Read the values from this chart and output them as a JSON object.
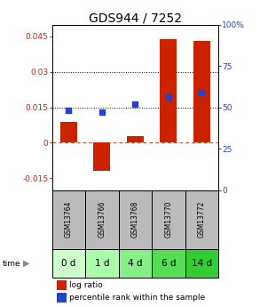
{
  "title": "GDS944 / 7252",
  "samples": [
    "GSM13764",
    "GSM13766",
    "GSM13768",
    "GSM13770",
    "GSM13772"
  ],
  "time_labels": [
    "0 d",
    "1 d",
    "4 d",
    "6 d",
    "14 d"
  ],
  "log_ratio": [
    0.009,
    -0.012,
    0.003,
    0.044,
    0.043
  ],
  "percentile_rank": [
    0.48,
    0.47,
    0.52,
    0.56,
    0.59
  ],
  "ylim_left": [
    -0.02,
    0.05
  ],
  "ylim_right": [
    0.0,
    1.0
  ],
  "yticks_left": [
    -0.015,
    0.0,
    0.015,
    0.03,
    0.045
  ],
  "ytick_labels_left": [
    "-0.015",
    "0",
    "0.015",
    "0.03",
    "0.045"
  ],
  "yticks_right": [
    0.0,
    0.25,
    0.5,
    0.75,
    1.0
  ],
  "ytick_labels_right": [
    "0",
    "25",
    "50",
    "75",
    "100%"
  ],
  "hlines": [
    0.015,
    0.03
  ],
  "zero_line": 0.0,
  "bar_color": "#cc2200",
  "dot_color": "#2244cc",
  "bar_width": 0.5,
  "gsm_bg_color": "#bbbbbb",
  "time_bg_colors": [
    "#ccffcc",
    "#aaffaa",
    "#88ee88",
    "#55dd55",
    "#33cc33"
  ],
  "legend_bar_label": "log ratio",
  "legend_dot_label": "percentile rank within the sample",
  "title_fontsize": 10,
  "tick_fontsize": 6.5,
  "label_fontsize": 6.5,
  "gsm_fontsize": 5.5,
  "time_fontsize": 7.5
}
